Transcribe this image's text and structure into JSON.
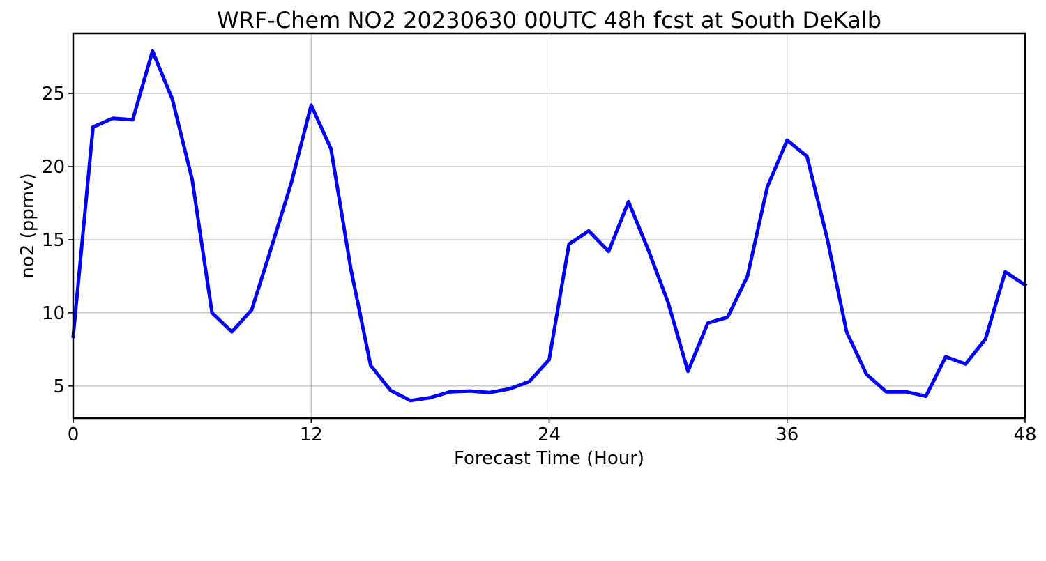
{
  "chart_data": {
    "type": "line",
    "title": "WRF-Chem NO2  20230630 00UTC 48h fcst at South DeKalb",
    "xlabel": "Forecast Time (Hour)",
    "ylabel": "no2  (ppmv)",
    "xlim": [
      0,
      48
    ],
    "ylim": [
      2.8,
      29.1
    ],
    "xticks": [
      0,
      12,
      24,
      36,
      48
    ],
    "yticks": [
      5,
      10,
      15,
      20,
      25
    ],
    "grid": true,
    "legend": "none",
    "x": [
      0,
      1,
      2,
      3,
      4,
      5,
      6,
      7,
      8,
      9,
      10,
      11,
      12,
      13,
      14,
      15,
      16,
      17,
      18,
      19,
      20,
      21,
      22,
      23,
      24,
      25,
      26,
      27,
      28,
      29,
      30,
      31,
      32,
      33,
      34,
      35,
      36,
      37,
      38,
      39,
      40,
      41,
      42,
      43,
      44,
      45,
      46,
      47,
      48
    ],
    "series": [
      {
        "color": "#0000ff",
        "values": [
          8.4,
          22.7,
          23.3,
          23.2,
          27.9,
          24.6,
          19.1,
          10.0,
          8.7,
          10.2,
          14.5,
          18.9,
          24.2,
          21.2,
          13.0,
          6.4,
          4.7,
          4.0,
          4.2,
          4.6,
          4.65,
          4.55,
          4.8,
          5.3,
          6.8,
          14.7,
          15.6,
          14.2,
          17.6,
          14.3,
          10.7,
          6.0,
          9.3,
          9.7,
          12.5,
          18.6,
          21.8,
          20.7,
          15.2,
          8.7,
          5.8,
          4.6,
          4.6,
          4.3,
          7.0,
          6.5,
          8.2,
          12.8,
          11.9
        ]
      }
    ]
  }
}
